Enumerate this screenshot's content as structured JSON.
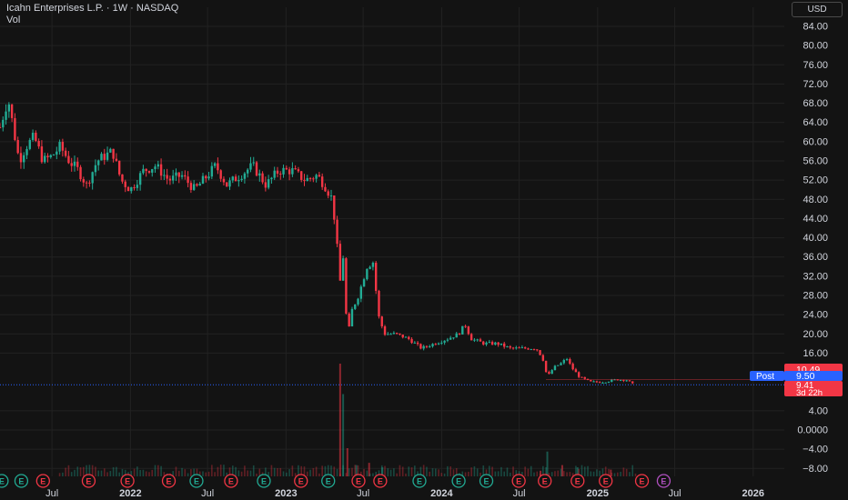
{
  "header": {
    "title": "Icahn Enterprises L.P. · 1W · NASDAQ",
    "sub": "Vol",
    "currency": "USD"
  },
  "badges": {
    "last_price": "10.49",
    "post_label": "Post",
    "post_value": "9.50",
    "current_value": "9.41",
    "countdown": "3d 22h"
  },
  "colors": {
    "background": "#131313",
    "up": "#22ab94",
    "down": "#f23645",
    "post": "#2962ff",
    "grid": "#222222",
    "text": "#d1d4dc"
  },
  "chart_data": {
    "type": "candlestick",
    "ylim": [
      -10,
      88
    ],
    "ytick_labels": [
      "84.00",
      "80.00",
      "76.00",
      "72.00",
      "68.00",
      "64.00",
      "60.00",
      "56.00",
      "52.00",
      "48.00",
      "44.00",
      "40.00",
      "36.00",
      "32.00",
      "28.00",
      "24.00",
      "20.00",
      "16.00",
      "4.00",
      "0.0000",
      "−4.00",
      "−8.00"
    ],
    "ytick_values": [
      84,
      80,
      76,
      72,
      68,
      64,
      60,
      56,
      52,
      48,
      44,
      40,
      36,
      32,
      28,
      24,
      20,
      16,
      4,
      0,
      -4,
      -8
    ],
    "xlim": [
      "2021-03-01",
      "2026-03-15"
    ],
    "xtick_labels": [
      "Jul",
      "2022",
      "Jul",
      "2023",
      "Jul",
      "2024",
      "Jul",
      "2025",
      "Jul",
      "2026"
    ],
    "xtick_values": [
      "2021-07-01",
      "2022-01-01",
      "2022-07-01",
      "2023-01-01",
      "2023-07-01",
      "2024-01-01",
      "2024-07-01",
      "2025-01-01",
      "2025-07-01",
      "2026-01-01"
    ],
    "post_price": 9.5,
    "current_price": 9.41,
    "last_price": 10.49,
    "price_path": [
      [
        "2021-03-01",
        63
      ],
      [
        "2021-03-20",
        69
      ],
      [
        "2021-04-15",
        56
      ],
      [
        "2021-05-01",
        59
      ],
      [
        "2021-05-20",
        61
      ],
      [
        "2021-06-10",
        56
      ],
      [
        "2021-07-01",
        57
      ],
      [
        "2021-07-20",
        59
      ],
      [
        "2021-08-10",
        56
      ],
      [
        "2021-09-01",
        54
      ],
      [
        "2021-09-20",
        51
      ],
      [
        "2021-10-15",
        56
      ],
      [
        "2021-11-01",
        57
      ],
      [
        "2021-11-20",
        58
      ],
      [
        "2021-12-10",
        52
      ],
      [
        "2022-01-01",
        50
      ],
      [
        "2022-02-01",
        54
      ],
      [
        "2022-03-01",
        55
      ],
      [
        "2022-04-01",
        52
      ],
      [
        "2022-05-01",
        53
      ],
      [
        "2022-06-01",
        50
      ],
      [
        "2022-07-01",
        53
      ],
      [
        "2022-07-20",
        55
      ],
      [
        "2022-08-15",
        51
      ],
      [
        "2022-09-15",
        53
      ],
      [
        "2022-10-15",
        55
      ],
      [
        "2022-11-15",
        51
      ],
      [
        "2022-12-15",
        54
      ],
      [
        "2023-01-15",
        54
      ],
      [
        "2023-02-15",
        52
      ],
      [
        "2023-03-15",
        53
      ],
      [
        "2023-04-01",
        51
      ],
      [
        "2023-04-20",
        48
      ],
      [
        "2023-05-01",
        38
      ],
      [
        "2023-05-08",
        31
      ],
      [
        "2023-05-15",
        36
      ],
      [
        "2023-05-25",
        19
      ],
      [
        "2023-06-05",
        25
      ],
      [
        "2023-06-20",
        28
      ],
      [
        "2023-07-10",
        34
      ],
      [
        "2023-07-25",
        35
      ],
      [
        "2023-08-05",
        24
      ],
      [
        "2023-08-20",
        20
      ],
      [
        "2023-09-15",
        20
      ],
      [
        "2023-10-15",
        19
      ],
      [
        "2023-11-15",
        17
      ],
      [
        "2023-12-15",
        18
      ],
      [
        "2024-01-15",
        19
      ],
      [
        "2024-02-10",
        20
      ],
      [
        "2024-02-25",
        22
      ],
      [
        "2024-03-10",
        19
      ],
      [
        "2024-04-10",
        18
      ],
      [
        "2024-05-10",
        18
      ],
      [
        "2024-06-10",
        17
      ],
      [
        "2024-07-10",
        17
      ],
      [
        "2024-08-10",
        17
      ],
      [
        "2024-08-25",
        15
      ],
      [
        "2024-09-05",
        11
      ],
      [
        "2024-09-20",
        13
      ],
      [
        "2024-10-10",
        14
      ],
      [
        "2024-10-20",
        15
      ],
      [
        "2024-11-01",
        13
      ],
      [
        "2024-11-20",
        11
      ],
      [
        "2024-12-15",
        10
      ],
      [
        "2025-01-15",
        10
      ],
      [
        "2025-02-15",
        10.5
      ],
      [
        "2025-03-10",
        10.4
      ],
      [
        "2025-03-25",
        9.5
      ]
    ],
    "volume_bars": [
      [
        "2023-05-08",
        1.0
      ],
      [
        "2023-05-15",
        0.73
      ],
      [
        "2023-05-25",
        0.25
      ],
      [
        "2023-06-15",
        0.1
      ],
      [
        "2023-07-15",
        0.12
      ],
      [
        "2023-08-15",
        0.08
      ],
      [
        "2024-08-20",
        0.05
      ],
      [
        "2024-09-05",
        0.22
      ],
      [
        "2024-10-10",
        0.1
      ],
      [
        "2024-11-15",
        0.08
      ],
      [
        "2025-02-01",
        0.06
      ]
    ],
    "events": [
      {
        "date": "2021-03-05",
        "label": "E",
        "color": "#22ab94"
      },
      {
        "date": "2021-04-20",
        "label": "E",
        "color": "#22ab94"
      },
      {
        "date": "2021-06-10",
        "label": "E",
        "color": "#f23645"
      },
      {
        "date": "2021-09-25",
        "label": "E",
        "color": "#f23645"
      },
      {
        "date": "2021-12-25",
        "label": "E",
        "color": "#f23645"
      },
      {
        "date": "2022-04-01",
        "label": "E",
        "color": "#f23645"
      },
      {
        "date": "2022-06-05",
        "label": "E",
        "color": "#22ab94"
      },
      {
        "date": "2022-08-25",
        "label": "E",
        "color": "#f23645"
      },
      {
        "date": "2022-11-10",
        "label": "E",
        "color": "#22ab94"
      },
      {
        "date": "2023-02-05",
        "label": "E",
        "color": "#f23645"
      },
      {
        "date": "2023-04-10",
        "label": "E",
        "color": "#22ab94"
      },
      {
        "date": "2023-06-20",
        "label": "E",
        "color": "#f23645"
      },
      {
        "date": "2023-08-10",
        "label": "E",
        "color": "#f23645"
      },
      {
        "date": "2023-11-10",
        "label": "E",
        "color": "#22ab94"
      },
      {
        "date": "2024-02-10",
        "label": "E",
        "color": "#22ab94"
      },
      {
        "date": "2024-04-15",
        "label": "E",
        "color": "#22ab94"
      },
      {
        "date": "2024-06-30",
        "label": "E",
        "color": "#f23645"
      },
      {
        "date": "2024-08-30",
        "label": "E",
        "color": "#f23645"
      },
      {
        "date": "2024-11-15",
        "label": "E",
        "color": "#f23645"
      },
      {
        "date": "2025-01-20",
        "label": "E",
        "color": "#f23645"
      },
      {
        "date": "2025-04-15",
        "label": "E",
        "color": "#f23645"
      },
      {
        "date": "2025-06-05",
        "label": "E",
        "color": "#b050c0"
      }
    ]
  }
}
